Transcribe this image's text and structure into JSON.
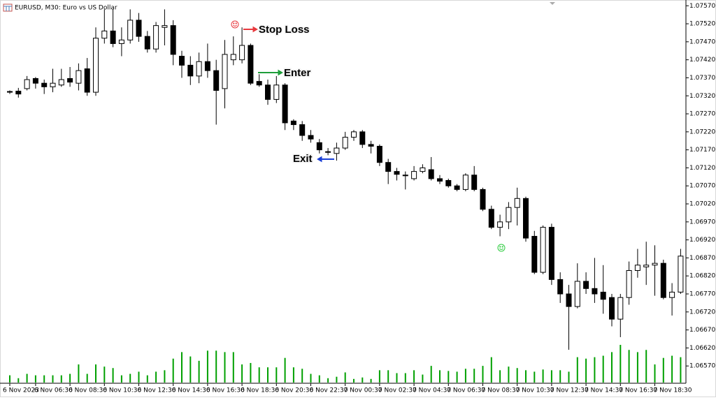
{
  "chart_data": {
    "type": "candlestick",
    "title": "EURUSD, M30:  Euro vs US Dollar",
    "categories": [
      "6 Nov 2023",
      null,
      null,
      "6 Nov 06:30",
      null,
      null,
      null,
      "6 Nov 08:30",
      null,
      null,
      null,
      "6 Nov 10:30",
      null,
      null,
      null,
      "6 Nov 12:30",
      null,
      null,
      null,
      "6 Nov 14:30",
      null,
      null,
      null,
      "6 Nov 16:30",
      null,
      null,
      null,
      "6 Nov 18:30",
      null,
      null,
      null,
      "6 Nov 20:30",
      null,
      null,
      null,
      "6 Nov 22:30",
      null,
      null,
      null,
      "7 Nov 00:30",
      null,
      null,
      null,
      "7 Nov 02:30",
      null,
      null,
      null,
      "7 Nov 04:30",
      null,
      null,
      null,
      "7 Nov 06:30",
      null,
      null,
      null,
      "7 Nov 08:30",
      null,
      null,
      null,
      "7 Nov 10:30",
      null,
      null,
      null,
      "7 Nov 12:30",
      null,
      null,
      null,
      "7 Nov 14:30",
      null,
      null,
      null,
      "7 Nov 16:30",
      null,
      null,
      null,
      "7 Nov 18:30",
      null,
      null,
      null
    ],
    "open": [
      1.07332,
      1.07333,
      1.0734,
      1.07368,
      1.07355,
      1.07345,
      1.0735,
      1.07368,
      1.07355,
      1.07395,
      1.0733,
      1.0748,
      1.075,
      1.07465,
      1.07475,
      1.0753,
      1.07485,
      1.0745,
      1.0751,
      1.07515,
      1.0743,
      1.07405,
      1.07375,
      1.07415,
      1.0739,
      1.0734,
      1.0742,
      1.0742,
      1.0746,
      1.0736,
      1.0735,
      1.0731,
      1.0735,
      1.0725,
      1.0724,
      1.0721,
      1.0719,
      1.07165,
      1.0716,
      1.07175,
      1.07205,
      1.0722,
      1.07185,
      1.0718,
      1.07135,
      1.0711,
      1.071,
      1.0709,
      1.0711,
      1.07115,
      1.0709,
      1.07085,
      1.0707,
      1.0706,
      1.071,
      1.0706,
      1.07005,
      1.06955,
      1.0697,
      1.0701,
      1.07035,
      1.0693,
      1.0683,
      1.06955,
      1.0681,
      1.0677,
      1.06735,
      1.06805,
      1.06785,
      1.06775,
      1.0676,
      1.067,
      1.0676,
      1.06835,
      1.06845,
      1.0685,
      1.06855,
      1.0676,
      1.06775
    ],
    "high": [
      1.07335,
      1.07342,
      1.07375,
      1.07372,
      1.07365,
      1.07395,
      1.07395,
      1.074,
      1.0741,
      1.07425,
      1.0751,
      1.0756,
      1.0756,
      1.0751,
      1.0756,
      1.0755,
      1.075,
      1.07525,
      1.0756,
      1.0753,
      1.07445,
      1.0743,
      1.0744,
      1.07465,
      1.0742,
      1.07475,
      1.07485,
      1.0751,
      1.07465,
      1.0738,
      1.07365,
      1.07375,
      1.07355,
      1.07255,
      1.0725,
      1.07225,
      1.072,
      1.07175,
      1.0719,
      1.0722,
      1.07225,
      1.07225,
      1.07195,
      1.07185,
      1.07145,
      1.0712,
      1.0711,
      1.07125,
      1.0713,
      1.0715,
      1.071,
      1.0709,
      1.07075,
      1.07105,
      1.07125,
      1.07065,
      1.07015,
      1.0699,
      1.07025,
      1.07065,
      1.0704,
      1.06945,
      1.0696,
      1.06965,
      1.0683,
      1.06795,
      1.06855,
      1.0683,
      1.0687,
      1.0685,
      1.0677,
      1.0677,
      1.0686,
      1.06895,
      1.06915,
      1.06905,
      1.06865,
      1.068,
      1.06895
    ],
    "low": [
      1.07325,
      1.07315,
      1.07335,
      1.0734,
      1.07325,
      1.0733,
      1.07345,
      1.07345,
      1.07335,
      1.0732,
      1.0732,
      1.07465,
      1.07455,
      1.0743,
      1.07465,
      1.0747,
      1.0744,
      1.0744,
      1.0746,
      1.07405,
      1.0737,
      1.0735,
      1.07355,
      1.0737,
      1.0724,
      1.07285,
      1.07405,
      1.0741,
      1.0735,
      1.07345,
      1.07295,
      1.073,
      1.07225,
      1.07225,
      1.07195,
      1.0719,
      1.0716,
      1.07155,
      1.0714,
      1.0717,
      1.07195,
      1.07175,
      1.0716,
      1.07125,
      1.07075,
      1.07085,
      1.0706,
      1.07085,
      1.07105,
      1.07085,
      1.07075,
      1.07065,
      1.07055,
      1.07055,
      1.07055,
      1.07,
      1.0695,
      1.0693,
      1.0695,
      1.0696,
      1.06915,
      1.06825,
      1.06825,
      1.06795,
      1.06745,
      1.06615,
      1.0673,
      1.0677,
      1.06745,
      1.06715,
      1.0668,
      1.0665,
      1.0674,
      1.06815,
      1.06795,
      1.06765,
      1.06755,
      1.0671,
      1.0677
    ],
    "close": [
      1.0733,
      1.07325,
      1.07365,
      1.07355,
      1.07345,
      1.07355,
      1.07365,
      1.07358,
      1.0739,
      1.0733,
      1.0748,
      1.075,
      1.07465,
      1.07475,
      1.0753,
      1.07485,
      1.0745,
      1.07515,
      1.07515,
      1.07435,
      1.07405,
      1.07375,
      1.07415,
      1.0739,
      1.07335,
      1.07435,
      1.07435,
      1.0746,
      1.07355,
      1.0735,
      1.0731,
      1.0735,
      1.07245,
      1.0724,
      1.0721,
      1.072,
      1.0717,
      1.07163,
      1.07175,
      1.07205,
      1.0722,
      1.07185,
      1.0718,
      1.07135,
      1.0711,
      1.07102,
      1.07098,
      1.0711,
      1.0712,
      1.0709,
      1.07083,
      1.0707,
      1.0706,
      1.071,
      1.0706,
      1.07005,
      1.06955,
      1.0697,
      1.0701,
      1.07035,
      1.06925,
      1.0683,
      1.06955,
      1.0681,
      1.0677,
      1.06735,
      1.06805,
      1.06785,
      1.0677,
      1.06755,
      1.067,
      1.0676,
      1.06835,
      1.0685,
      1.0685,
      1.06855,
      1.0676,
      1.06775,
      1.06875
    ],
    "volume": [
      10,
      6,
      12,
      10,
      10,
      10,
      10,
      12,
      25,
      12,
      25,
      22,
      20,
      10,
      12,
      15,
      10,
      15,
      17,
      33,
      42,
      36,
      30,
      44,
      44,
      42,
      42,
      25,
      27,
      21,
      21,
      21,
      34,
      21,
      19,
      12,
      10,
      6,
      8,
      14,
      5,
      7,
      5,
      17,
      17,
      13,
      13,
      17,
      11,
      23,
      17,
      16,
      15,
      19,
      19,
      23,
      35,
      17,
      22,
      20,
      17,
      15,
      18,
      17,
      17,
      15,
      35,
      33,
      35,
      37,
      42,
      52,
      45,
      42,
      45,
      25,
      34,
      37,
      35
    ],
    "up_color": "#ffffff",
    "down_color": "#000000",
    "volume_color": "#00a000",
    "ylim": [
      1.06522,
      1.07586
    ],
    "yticks": [
      {
        "value": 1.0757,
        "label": "1.07570"
      },
      {
        "value": 1.0752,
        "label": "1.07520"
      },
      {
        "value": 1.0747,
        "label": "1.07470"
      },
      {
        "value": 1.0742,
        "label": "1.07420"
      },
      {
        "value": 1.0737,
        "label": "1.07370"
      },
      {
        "value": 1.0732,
        "label": "1.07320"
      },
      {
        "value": 1.0727,
        "label": "1.07270"
      },
      {
        "value": 1.0722,
        "label": "1.07220"
      },
      {
        "value": 1.0717,
        "label": "1.07170"
      },
      {
        "value": 1.0712,
        "label": "1.07120"
      },
      {
        "value": 1.0707,
        "label": "1.07070"
      },
      {
        "value": 1.0702,
        "label": "1.07020"
      },
      {
        "value": 1.0697,
        "label": "1.06970"
      },
      {
        "value": 1.0692,
        "label": "1.06920"
      },
      {
        "value": 1.0687,
        "label": "1.06870"
      },
      {
        "value": 1.0682,
        "label": "1.06820"
      },
      {
        "value": 1.0677,
        "label": "1.06770"
      },
      {
        "value": 1.0672,
        "label": "1.06720"
      },
      {
        "value": 1.0667,
        "label": "1.06670"
      },
      {
        "value": 1.0662,
        "label": "1.06620"
      },
      {
        "value": 1.0657,
        "label": "1.06570"
      }
    ],
    "grid": false,
    "annotations": [
      {
        "text": "Stop Loss",
        "color": "#e8383d"
      },
      {
        "text": "Enter",
        "color": "#1e9e3a"
      },
      {
        "text": "Exit",
        "color": "#1a3fd6"
      }
    ]
  }
}
